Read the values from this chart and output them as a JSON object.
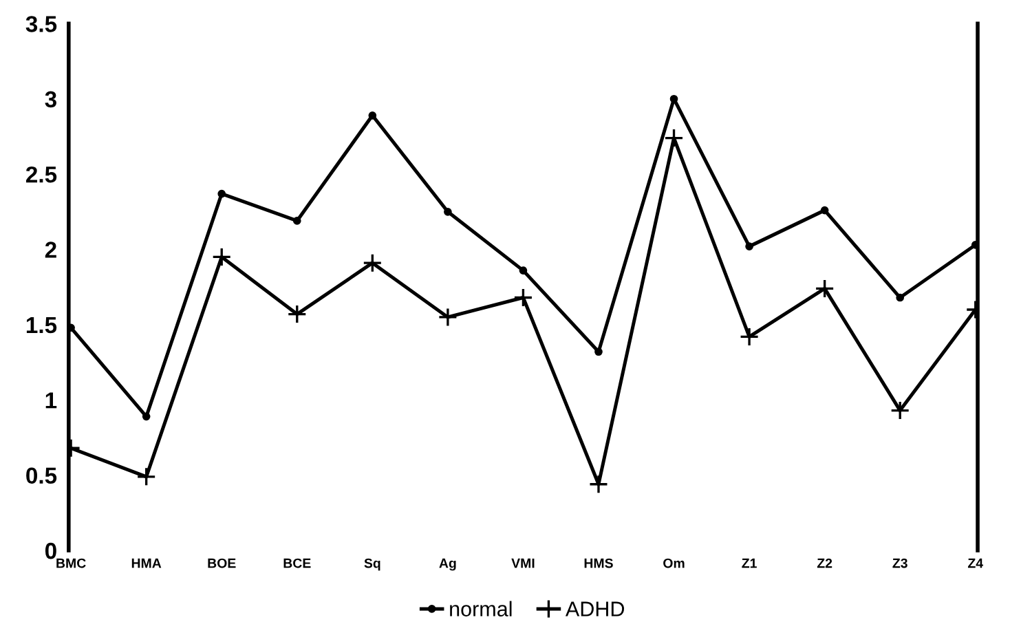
{
  "chart_data": {
    "type": "line",
    "categories": [
      "BMC",
      "HMA",
      "BOE",
      "BCE",
      "Sq",
      "Ag",
      "VMI",
      "HMS",
      "Om",
      "Z1",
      "Z2",
      "Z3",
      "Z4"
    ],
    "series": [
      {
        "name": "normal",
        "color": "#000000",
        "marker": "circle",
        "values": [
          1.48,
          0.89,
          2.37,
          2.19,
          2.89,
          2.25,
          1.86,
          1.32,
          3.0,
          2.02,
          2.26,
          1.68,
          2.03
        ]
      },
      {
        "name": "ADHD",
        "color": "#000000",
        "marker": "cross",
        "values": [
          0.68,
          0.49,
          1.95,
          1.57,
          1.91,
          1.55,
          1.68,
          0.44,
          2.74,
          1.42,
          1.74,
          0.93,
          1.6
        ]
      }
    ],
    "ylim": [
      0,
      3.5
    ],
    "yticks": [
      0,
      0.5,
      1,
      1.5,
      2,
      2.5,
      3,
      3.5
    ],
    "legend": "bottom",
    "line_style": "solid"
  }
}
